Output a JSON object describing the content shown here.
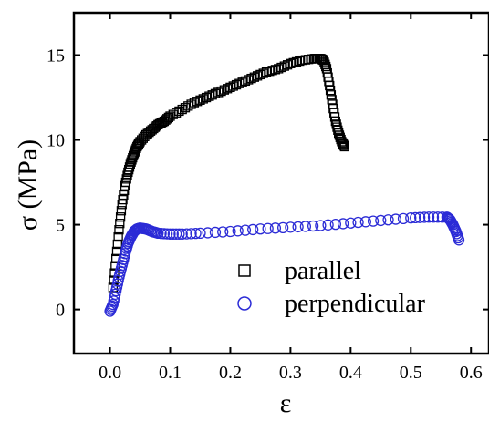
{
  "chart_data": {
    "type": "scatter",
    "xlabel": "ε",
    "ylabel": "σ (MPa)",
    "xlim": [
      -0.06,
      0.63
    ],
    "ylim": [
      -2.6,
      17.5
    ],
    "xticks": [
      0.0,
      0.1,
      0.2,
      0.3,
      0.4,
      0.5,
      0.6
    ],
    "xtick_labels": [
      "0.0",
      "0.1",
      "0.2",
      "0.3",
      "0.4",
      "0.5",
      "0.6"
    ],
    "yticks": [
      0,
      5,
      10,
      15
    ],
    "ytick_labels": [
      "0",
      "5",
      "10",
      "15"
    ],
    "grid": false,
    "legend_position": "bottom-center",
    "series": [
      {
        "name": "parallel",
        "marker": "square",
        "color": "#000000",
        "x": [
          0.005,
          0.01,
          0.015,
          0.02,
          0.025,
          0.03,
          0.035,
          0.04,
          0.045,
          0.05,
          0.06,
          0.07,
          0.08,
          0.09,
          0.1,
          0.12,
          0.14,
          0.16,
          0.18,
          0.2,
          0.22,
          0.24,
          0.26,
          0.28,
          0.3,
          0.32,
          0.34,
          0.35,
          0.355,
          0.36,
          0.365,
          0.37,
          0.375,
          0.38,
          0.385,
          0.39
        ],
        "y": [
          1.3,
          3.0,
          4.7,
          6.2,
          7.3,
          8.1,
          8.7,
          9.2,
          9.6,
          9.9,
          10.3,
          10.6,
          10.9,
          11.1,
          11.4,
          11.8,
          12.2,
          12.5,
          12.8,
          13.1,
          13.4,
          13.7,
          14.0,
          14.2,
          14.5,
          14.7,
          14.8,
          14.8,
          14.7,
          14.2,
          13.2,
          12.1,
          11.1,
          10.4,
          9.9,
          9.6
        ]
      },
      {
        "name": "perpendicular",
        "marker": "circle",
        "color": "#2b2bd6",
        "x": [
          0.0,
          0.005,
          0.01,
          0.015,
          0.02,
          0.025,
          0.03,
          0.035,
          0.04,
          0.045,
          0.05,
          0.06,
          0.07,
          0.08,
          0.1,
          0.12,
          0.15,
          0.2,
          0.25,
          0.3,
          0.35,
          0.4,
          0.45,
          0.5,
          0.53,
          0.56,
          0.565,
          0.57,
          0.575,
          0.58
        ],
        "y": [
          -0.1,
          0.3,
          1.1,
          1.9,
          2.6,
          3.3,
          3.9,
          4.3,
          4.6,
          4.75,
          4.8,
          4.75,
          4.6,
          4.5,
          4.45,
          4.45,
          4.5,
          4.6,
          4.75,
          4.85,
          4.95,
          5.1,
          5.25,
          5.4,
          5.45,
          5.45,
          5.3,
          5.0,
          4.6,
          4.1
        ]
      }
    ]
  }
}
